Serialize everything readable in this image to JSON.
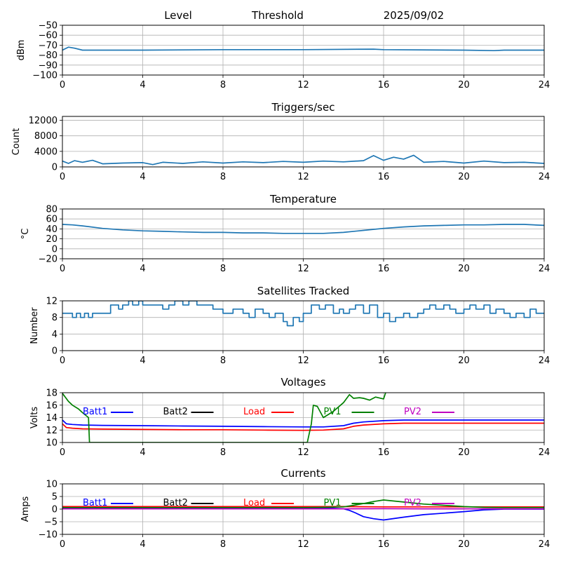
{
  "header": {
    "level_label": "Level",
    "threshold_label": "Threshold",
    "date": "2025/09/02"
  },
  "colors": {
    "series": "#1f77b4",
    "grid": "#b0b0b0",
    "batt1": "#0000ff",
    "batt2": "#000000",
    "load": "#ff0000",
    "pv1": "#008000",
    "pv2": "#bf00bf"
  },
  "chart_data": [
    {
      "type": "line",
      "title": "",
      "ylabel": "dBm",
      "xlim": [
        0,
        24
      ],
      "ylim": [
        -100,
        -50
      ],
      "yticks": [
        "-50",
        "-60",
        "-70",
        "-80",
        "-90",
        "-100"
      ],
      "xticks": [
        "0",
        "4",
        "8",
        "12",
        "16",
        "20",
        "24"
      ],
      "grid": true,
      "series": [
        {
          "x": [
            0,
            0.3,
            0.6,
            1.0,
            1.5,
            2,
            4,
            8,
            12,
            15.5,
            16,
            20,
            21.5,
            22,
            24
          ],
          "y": [
            -75,
            -72,
            -73,
            -75,
            -75,
            -75,
            -75,
            -74.5,
            -74.5,
            -74,
            -74.5,
            -75,
            -75.5,
            -75,
            -75
          ]
        }
      ]
    },
    {
      "type": "line",
      "title": "Triggers/sec",
      "ylabel": "Count",
      "xlim": [
        0,
        24
      ],
      "ylim": [
        0,
        13000
      ],
      "yticks": [
        "12000",
        "8000",
        "4000",
        "0"
      ],
      "xticks": [
        "0",
        "4",
        "8",
        "12",
        "16",
        "20",
        "24"
      ],
      "grid": true,
      "series": [
        {
          "x": [
            0,
            0.3,
            0.6,
            1,
            1.5,
            2,
            3,
            4,
            4.5,
            5,
            6,
            7,
            8,
            9,
            10,
            11,
            12,
            13,
            14,
            15,
            15.5,
            16,
            16.5,
            17,
            17.5,
            18,
            19,
            20,
            21,
            22,
            23,
            24
          ],
          "y": [
            1500,
            900,
            1600,
            1200,
            1700,
            800,
            1000,
            1100,
            600,
            1200,
            900,
            1300,
            1000,
            1300,
            1100,
            1400,
            1200,
            1500,
            1300,
            1600,
            2900,
            1700,
            2500,
            2000,
            3000,
            1200,
            1400,
            1000,
            1500,
            1100,
            1200,
            900
          ]
        }
      ]
    },
    {
      "type": "line",
      "title": "Temperature",
      "ylabel": "°C",
      "xlim": [
        0,
        24
      ],
      "ylim": [
        -20,
        80
      ],
      "yticks": [
        "80",
        "60",
        "40",
        "20",
        "0",
        "-20"
      ],
      "xticks": [
        "0",
        "4",
        "8",
        "12",
        "16",
        "20",
        "24"
      ],
      "grid": true,
      "series": [
        {
          "x": [
            0,
            0.5,
            1,
            2,
            3,
            4,
            5,
            6,
            7,
            8,
            9,
            10,
            11,
            12,
            13,
            14,
            15,
            16,
            17,
            18,
            19,
            20,
            21,
            22,
            23,
            24
          ],
          "y": [
            49,
            48,
            46,
            41,
            38,
            36,
            35,
            34,
            33,
            33,
            32,
            32,
            31,
            31,
            31,
            33,
            37,
            41,
            44,
            46,
            47,
            48,
            48,
            49,
            49,
            47
          ]
        }
      ]
    },
    {
      "type": "line",
      "title": "Satellites Tracked",
      "ylabel": "Number",
      "xlim": [
        0,
        24
      ],
      "ylim": [
        0,
        12
      ],
      "yticks": [
        "12",
        "8",
        "4",
        "0"
      ],
      "xticks": [
        "0",
        "4",
        "8",
        "12",
        "16",
        "20",
        "24"
      ],
      "grid": true,
      "series": [
        {
          "x": [
            0,
            0.5,
            0.7,
            0.9,
            1.1,
            1.3,
            1.5,
            2,
            2.4,
            2.8,
            3,
            3.3,
            3.5,
            3.8,
            4,
            4.5,
            5,
            5.3,
            5.6,
            6,
            6.3,
            6.7,
            7,
            7.5,
            8,
            8.5,
            9,
            9.3,
            9.6,
            10,
            10.3,
            10.6,
            11,
            11.2,
            11.5,
            11.8,
            12,
            12.4,
            12.8,
            13.1,
            13.5,
            13.8,
            14,
            14.3,
            14.6,
            15,
            15.3,
            15.7,
            16,
            16.3,
            16.6,
            17,
            17.3,
            17.7,
            18,
            18.3,
            18.6,
            19,
            19.3,
            19.6,
            20,
            20.3,
            20.6,
            21,
            21.3,
            21.6,
            22,
            22.3,
            22.6,
            23,
            23.3,
            23.6,
            24
          ],
          "y": [
            9,
            8,
            9,
            8,
            9,
            8,
            9,
            9,
            11,
            10,
            11,
            12,
            11,
            12,
            11,
            11,
            10,
            11,
            12,
            11,
            12,
            11,
            11,
            10,
            9,
            10,
            9,
            8,
            10,
            9,
            8,
            9,
            7,
            6,
            8,
            7,
            9,
            11,
            10,
            11,
            9,
            10,
            9,
            10,
            11,
            9,
            11,
            8,
            9,
            7,
            8,
            9,
            8,
            9,
            10,
            11,
            10,
            11,
            10,
            9,
            10,
            11,
            10,
            11,
            9,
            10,
            9,
            8,
            9,
            8,
            10,
            9,
            9
          ]
        }
      ]
    },
    {
      "type": "line",
      "title": "Voltages",
      "ylabel": "Volts",
      "xlim": [
        0,
        24
      ],
      "ylim": [
        10,
        18
      ],
      "yticks": [
        "18",
        "16",
        "14",
        "12",
        "10"
      ],
      "xticks": [
        "0",
        "4",
        "8",
        "12",
        "16",
        "20",
        "24"
      ],
      "grid": true,
      "legend": [
        "Batt1",
        "Batt2",
        "Load",
        "PV1",
        "PV2"
      ],
      "series": [
        {
          "name": "Batt1",
          "color": "#0000ff",
          "x": [
            0,
            0.2,
            0.5,
            1,
            2,
            4,
            6,
            8,
            10,
            12,
            13,
            14,
            14.5,
            15,
            16,
            17,
            18,
            20,
            22,
            24
          ],
          "y": [
            13.6,
            13.0,
            12.9,
            12.8,
            12.75,
            12.7,
            12.65,
            12.6,
            12.55,
            12.5,
            12.5,
            12.7,
            13.1,
            13.3,
            13.5,
            13.6,
            13.6,
            13.6,
            13.6,
            13.6
          ]
        },
        {
          "name": "Load",
          "color": "#ff0000",
          "x": [
            0,
            0.2,
            0.5,
            1,
            2,
            4,
            6,
            8,
            10,
            12,
            13,
            14,
            14.5,
            15,
            16,
            17,
            18,
            20,
            22,
            24
          ],
          "y": [
            13.0,
            12.4,
            12.3,
            12.2,
            12.15,
            12.1,
            12.05,
            12.05,
            12.0,
            11.95,
            12.0,
            12.2,
            12.6,
            12.8,
            13.0,
            13.1,
            13.1,
            13.1,
            13.1,
            13.1
          ]
        },
        {
          "name": "PV1",
          "color": "#008000",
          "x": [
            0,
            0.3,
            0.5,
            0.8,
            1,
            1.3,
            1.35,
            12.2,
            12.4,
            12.5,
            12.7,
            13,
            13.5,
            14,
            14.3,
            14.5,
            14.8,
            15,
            15.3,
            15.6,
            16,
            16.1
          ],
          "y": [
            17.9,
            16.6,
            16.0,
            15.4,
            14.8,
            14.0,
            10.0,
            10.0,
            13.0,
            16.0,
            15.8,
            14.0,
            15.0,
            16.4,
            17.7,
            17.1,
            17.2,
            17.1,
            16.8,
            17.3,
            17.0,
            18.0
          ]
        }
      ]
    },
    {
      "type": "line",
      "title": "Currents",
      "ylabel": "Amps",
      "xlim": [
        0,
        24
      ],
      "ylim": [
        -10,
        10
      ],
      "yticks": [
        "10",
        "5",
        "0",
        "-5",
        "-10"
      ],
      "xticks": [
        "0",
        "4",
        "8",
        "12",
        "16",
        "20",
        "24"
      ],
      "grid": true,
      "legend": [
        "Batt1",
        "Batt2",
        "Load",
        "PV1",
        "PV2"
      ],
      "series": [
        {
          "name": "Batt1",
          "color": "#0000ff",
          "x": [
            0,
            1,
            2,
            4,
            6,
            8,
            10,
            12,
            13,
            13.5,
            14,
            14.3,
            14.6,
            15,
            15.5,
            16,
            17,
            18,
            19,
            20,
            21,
            22,
            24
          ],
          "y": [
            0.5,
            0.4,
            0.5,
            0.5,
            0.5,
            0.5,
            0.5,
            0.5,
            0.5,
            0.3,
            0.1,
            -0.5,
            -1.5,
            -3.0,
            -3.8,
            -4.3,
            -3.2,
            -2.2,
            -1.6,
            -1.0,
            -0.3,
            0,
            0
          ]
        },
        {
          "name": "Load",
          "color": "#ff0000",
          "x": [
            0,
            2,
            4,
            6,
            8,
            10,
            12,
            14,
            16,
            18,
            20,
            22,
            24
          ],
          "y": [
            1.0,
            1.0,
            1.0,
            1.0,
            1.0,
            1.0,
            1.0,
            1.0,
            0.9,
            0.9,
            0.9,
            0.9,
            0.9
          ]
        },
        {
          "name": "PV1",
          "color": "#008000",
          "x": [
            0,
            2,
            4,
            6,
            8,
            10,
            12,
            13,
            14,
            14.5,
            15,
            15.5,
            16,
            17,
            18,
            19,
            20,
            21,
            22,
            24
          ],
          "y": [
            0.6,
            0.6,
            0.6,
            0.6,
            0.6,
            0.6,
            0.6,
            0.7,
            0.9,
            1.5,
            2.2,
            3.0,
            3.6,
            2.8,
            2.0,
            1.5,
            1.0,
            0.7,
            0.6,
            0.6
          ]
        },
        {
          "name": "PV2",
          "color": "#bf00bf",
          "x": [
            0,
            2,
            4,
            6,
            8,
            10,
            12,
            14,
            16,
            18,
            20,
            22,
            24
          ],
          "y": [
            0.1,
            0.1,
            0.1,
            0.1,
            0.1,
            0.1,
            0.1,
            0.1,
            0.2,
            0.1,
            0.1,
            0.1,
            0.1
          ]
        }
      ]
    }
  ]
}
